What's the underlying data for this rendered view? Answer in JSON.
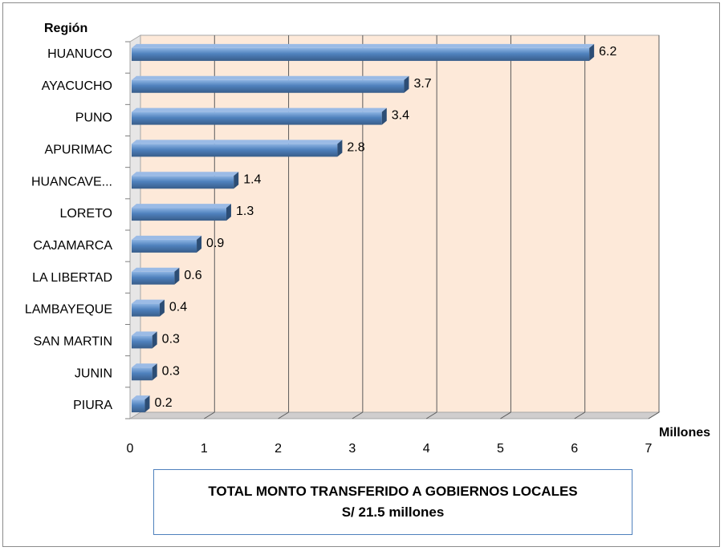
{
  "chart_data": {
    "type": "bar",
    "orientation": "horizontal",
    "categories": [
      "HUANUCO",
      "AYACUCHO",
      "PUNO",
      "APURIMAC",
      "HUANCAVE...",
      "LORETO",
      "CAJAMARCA",
      "LA LIBERTAD",
      "LAMBAYEQUE",
      "SAN MARTIN",
      "JUNIN",
      "PIURA"
    ],
    "values": [
      6.2,
      3.7,
      3.4,
      2.8,
      1.4,
      1.3,
      0.9,
      0.6,
      0.4,
      0.3,
      0.3,
      0.2
    ],
    "data_labels": [
      "6.2",
      "3.7",
      "3.4",
      "2.8",
      "1.4",
      "1.3",
      "0.9",
      "0.6",
      "0.4",
      "0.3",
      "0.3",
      "0.2"
    ],
    "x_ticks": [
      "0",
      "1",
      "2",
      "3",
      "4",
      "5",
      "6",
      "7"
    ],
    "xlim": [
      0,
      7
    ],
    "xlabel": "Millones",
    "ylabel": "Región",
    "grid": true,
    "bar_color": "#4f81bd",
    "plot_background": "#fde9d9",
    "title_lines": [
      "TOTAL MONTO TRANSFERIDO A GOBIERNOS LOCALES",
      "S/ 21.5 millones"
    ]
  }
}
